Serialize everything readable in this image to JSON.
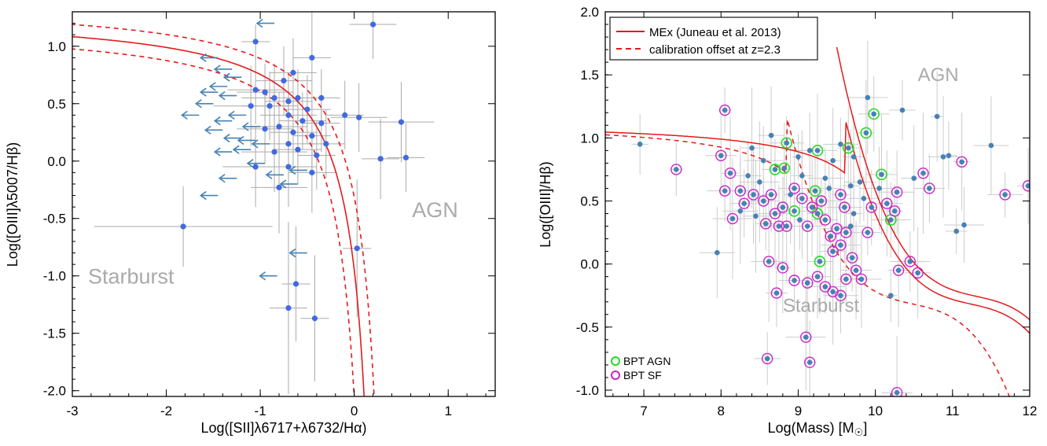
{
  "chart_data": [
    {
      "type": "scatter",
      "xlabel": "Log([SII]λ6717+λ6732/Hα)",
      "ylabel": "Log([OIII]λ5007/Hβ)",
      "xlim": [
        -3,
        1.5
      ],
      "ylim": [
        -2.05,
        1.3
      ],
      "xticks": [
        -3,
        -2,
        -1,
        0,
        1
      ],
      "yticks": [
        -2.0,
        -1.5,
        -1.0,
        -0.5,
        0.0,
        0.5,
        1.0
      ],
      "grid": false,
      "annotations": [
        {
          "text": "AGN",
          "x": 0.95,
          "y": -0.42
        },
        {
          "text": "Starburst",
          "x": -2.4,
          "y": -1.0
        }
      ],
      "colors": {
        "points": "#4169e1",
        "arrows": "#4682b4",
        "errorbars": "#aaaaaa",
        "curve": "#e41a1c"
      },
      "detections": [
        {
          "x": -1.05,
          "y": 1.04,
          "xerr": 0.15,
          "yerr": 0.15
        },
        {
          "x": 0.2,
          "y": 1.19,
          "xerr": 0.25,
          "yerr": 0.3
        },
        {
          "x": -0.45,
          "y": 0.9,
          "xerr": 0.2,
          "yerr": 0.45
        },
        {
          "x": -0.65,
          "y": 0.77,
          "xerr": 0.25,
          "yerr": 0.3
        },
        {
          "x": -0.75,
          "y": 0.7,
          "xerr": 0.3,
          "yerr": 0.3
        },
        {
          "x": -1.05,
          "y": 0.62,
          "xerr": 0.3,
          "yerr": 0.3
        },
        {
          "x": -0.95,
          "y": 0.6,
          "xerr": 0.3,
          "yerr": 0.25
        },
        {
          "x": -0.85,
          "y": 0.55,
          "xerr": 0.35,
          "yerr": 0.3
        },
        {
          "x": -0.7,
          "y": 0.52,
          "xerr": 0.25,
          "yerr": 0.25
        },
        {
          "x": -0.6,
          "y": 0.55,
          "xerr": 0.2,
          "yerr": 0.25
        },
        {
          "x": -0.9,
          "y": 0.48,
          "xerr": 0.3,
          "yerr": 0.3
        },
        {
          "x": -1.1,
          "y": 0.48,
          "xerr": 0.4,
          "yerr": 0.35
        },
        {
          "x": -0.5,
          "y": 0.45,
          "xerr": 0.25,
          "yerr": 0.3
        },
        {
          "x": -0.35,
          "y": 0.55,
          "xerr": 0.2,
          "yerr": 0.25
        },
        {
          "x": -0.7,
          "y": 0.4,
          "xerr": 0.3,
          "yerr": 0.3
        },
        {
          "x": -0.55,
          "y": 0.35,
          "xerr": 0.25,
          "yerr": 0.25
        },
        {
          "x": -0.1,
          "y": 0.4,
          "xerr": 0.2,
          "yerr": 0.3
        },
        {
          "x": 0.05,
          "y": 0.38,
          "xerr": 0.3,
          "yerr": 0.3
        },
        {
          "x": -0.35,
          "y": 0.33,
          "xerr": 0.2,
          "yerr": 0.25
        },
        {
          "x": -0.8,
          "y": 0.3,
          "xerr": 0.3,
          "yerr": 0.3
        },
        {
          "x": -0.95,
          "y": 0.28,
          "xerr": 0.3,
          "yerr": 0.3
        },
        {
          "x": -0.65,
          "y": 0.25,
          "xerr": 0.25,
          "yerr": 0.3
        },
        {
          "x": -0.45,
          "y": 0.22,
          "xerr": 0.2,
          "yerr": 0.3
        },
        {
          "x": -0.7,
          "y": 0.15,
          "xerr": 0.3,
          "yerr": 0.35
        },
        {
          "x": -0.85,
          "y": 0.08,
          "xerr": 0.35,
          "yerr": 0.35
        },
        {
          "x": -0.6,
          "y": 0.1,
          "xerr": 0.25,
          "yerr": 0.3
        },
        {
          "x": -0.4,
          "y": 0.05,
          "xerr": 0.2,
          "yerr": 0.3
        },
        {
          "x": -1.05,
          "y": -0.05,
          "xerr": 0.35,
          "yerr": 0.35
        },
        {
          "x": -0.7,
          "y": -0.05,
          "xerr": 0.3,
          "yerr": 0.35
        },
        {
          "x": -0.45,
          "y": -0.1,
          "xerr": 0.25,
          "yerr": 0.35
        },
        {
          "x": -0.8,
          "y": -0.23,
          "xerr": 0.3,
          "yerr": 0.4
        },
        {
          "x": -0.3,
          "y": 0.15,
          "xerr": 0.2,
          "yerr": 0.3
        },
        {
          "x": 0.5,
          "y": 0.34,
          "xerr": 0.35,
          "yerr": 0.35
        },
        {
          "x": 0.28,
          "y": 0.02,
          "xerr": 0.2,
          "yerr": 0.35
        },
        {
          "x": 0.55,
          "y": 0.03,
          "xerr": 0.2,
          "yerr": 0.3
        },
        {
          "x": -1.82,
          "y": -0.57,
          "xerr": 0.95,
          "yerr": 0.35
        },
        {
          "x": 0.03,
          "y": -0.76,
          "xerr": 0.15,
          "yerr": 0.6
        },
        {
          "x": -0.62,
          "y": -1.07,
          "xerr": 0.15,
          "yerr": 0.5
        },
        {
          "x": -0.7,
          "y": -1.28,
          "xerr": 0.2,
          "yerr": 0.75
        },
        {
          "x": -0.42,
          "y": -1.37,
          "xerr": 0.15,
          "yerr": 0.55
        }
      ],
      "upper_limits": [
        {
          "x": -0.85,
          "y": 1.2
        },
        {
          "x": -1.45,
          "y": 0.9
        },
        {
          "x": -1.3,
          "y": 0.8
        },
        {
          "x": -1.2,
          "y": 0.73
        },
        {
          "x": -1.35,
          "y": 0.65
        },
        {
          "x": -1.45,
          "y": 0.6
        },
        {
          "x": -1.25,
          "y": 0.57
        },
        {
          "x": -1.5,
          "y": 0.5
        },
        {
          "x": -1.65,
          "y": 0.4
        },
        {
          "x": -1.15,
          "y": 0.4
        },
        {
          "x": -1.3,
          "y": 0.35
        },
        {
          "x": -1.0,
          "y": 0.3
        },
        {
          "x": -1.4,
          "y": 0.27
        },
        {
          "x": -1.2,
          "y": 0.2
        },
        {
          "x": -1.05,
          "y": 0.18
        },
        {
          "x": -0.9,
          "y": 0.15
        },
        {
          "x": -1.1,
          "y": 0.1
        },
        {
          "x": -1.3,
          "y": 0.08
        },
        {
          "x": -0.95,
          "y": -0.02
        },
        {
          "x": -0.5,
          "y": -0.08
        },
        {
          "x": -0.75,
          "y": -0.12
        },
        {
          "x": -1.25,
          "y": -0.15
        },
        {
          "x": -0.6,
          "y": -0.2
        },
        {
          "x": -1.45,
          "y": -0.3
        },
        {
          "x": -0.5,
          "y": -0.8
        },
        {
          "x": -0.82,
          "y": -1.0
        }
      ],
      "curves": [
        {
          "style": "solid",
          "form": "0.72/(x-0.32)+1.30"
        },
        {
          "style": "dashed",
          "form": "0.72/(x-0.42)+1.40"
        },
        {
          "style": "dashed",
          "form": "0.72/(x-0.22)+1.20"
        }
      ]
    },
    {
      "type": "scatter",
      "xlabel": "Log(Mass) [M",
      "xlabel_suffix": "]",
      "ylabel": "Log([OIII]/Hβ)",
      "xlim": [
        6.5,
        12
      ],
      "ylim": [
        -1.05,
        2.0
      ],
      "xticks": [
        7,
        8,
        9,
        10,
        11,
        12
      ],
      "yticks": [
        -1.0,
        -0.5,
        0.0,
        0.5,
        1.0,
        1.5,
        2.0
      ],
      "grid": false,
      "legend_placement": "top-left",
      "legend": [
        {
          "label": "MEx (Juneau et al. 2013)",
          "style": "solid"
        },
        {
          "label": "calibration offset at z=2.3",
          "style": "dashed"
        }
      ],
      "marker_legend": [
        {
          "label": "BPT AGN",
          "color": "#22dd22"
        },
        {
          "label": "BPT SF",
          "color": "#cc22cc"
        }
      ],
      "annotations": [
        {
          "text": "AGN",
          "x": 10.55,
          "y": 1.45
        },
        {
          "text": "Starburst",
          "x": 8.8,
          "y": -0.38
        }
      ],
      "colors": {
        "points": "#4682b4",
        "bpt_agn": "#22dd22",
        "bpt_sf": "#cc22cc",
        "errorbars": "#cccccc",
        "curve": "#e41a1c"
      },
      "points": [
        {
          "x": 8.05,
          "y": 1.22,
          "flag": "sf"
        },
        {
          "x": 9.98,
          "y": 1.19,
          "flag": "agn"
        },
        {
          "x": 9.88,
          "y": 1.04,
          "flag": "agn"
        },
        {
          "x": 8.85,
          "y": 0.96,
          "flag": "agn"
        },
        {
          "x": 9.65,
          "y": 0.92,
          "flag": "agn"
        },
        {
          "x": 9.25,
          "y": 0.9,
          "flag": "agn"
        },
        {
          "x": 8.7,
          "y": 0.75,
          "flag": "agn"
        },
        {
          "x": 8.82,
          "y": 0.76,
          "flag": "agn"
        },
        {
          "x": 10.08,
          "y": 0.71,
          "flag": "agn"
        },
        {
          "x": 9.22,
          "y": 0.58,
          "flag": "agn"
        },
        {
          "x": 8.95,
          "y": 0.42,
          "flag": "agn"
        },
        {
          "x": 9.25,
          "y": 0.4,
          "flag": "agn"
        },
        {
          "x": 10.2,
          "y": 0.35,
          "flag": "agn"
        },
        {
          "x": 9.28,
          "y": 0.02,
          "flag": "agn"
        },
        {
          "x": 7.42,
          "y": 0.75,
          "flag": "sf"
        },
        {
          "x": 8.0,
          "y": 0.86,
          "flag": "sf"
        },
        {
          "x": 8.12,
          "y": 0.72,
          "flag": "sf"
        },
        {
          "x": 8.05,
          "y": 0.58,
          "flag": "sf"
        },
        {
          "x": 8.25,
          "y": 0.58,
          "flag": "sf"
        },
        {
          "x": 8.15,
          "y": 0.36,
          "flag": "sf"
        },
        {
          "x": 8.3,
          "y": 0.48,
          "flag": "sf"
        },
        {
          "x": 8.42,
          "y": 0.55,
          "flag": "sf"
        },
        {
          "x": 8.55,
          "y": 0.5,
          "flag": "sf"
        },
        {
          "x": 8.65,
          "y": 0.55,
          "flag": "sf"
        },
        {
          "x": 8.7,
          "y": 0.4,
          "flag": "sf"
        },
        {
          "x": 8.58,
          "y": 0.32,
          "flag": "sf"
        },
        {
          "x": 8.75,
          "y": 0.3,
          "flag": "sf"
        },
        {
          "x": 8.85,
          "y": 0.3,
          "flag": "sf"
        },
        {
          "x": 8.8,
          "y": 0.45,
          "flag": "sf"
        },
        {
          "x": 8.95,
          "y": 0.6,
          "flag": "sf"
        },
        {
          "x": 9.05,
          "y": 0.52,
          "flag": "sf"
        },
        {
          "x": 9.12,
          "y": 0.3,
          "flag": "sf"
        },
        {
          "x": 9.18,
          "y": 0.45,
          "flag": "sf"
        },
        {
          "x": 9.3,
          "y": 0.5,
          "flag": "sf"
        },
        {
          "x": 9.35,
          "y": 0.35,
          "flag": "sf"
        },
        {
          "x": 9.42,
          "y": 0.22,
          "flag": "sf"
        },
        {
          "x": 9.5,
          "y": 0.28,
          "flag": "sf"
        },
        {
          "x": 9.55,
          "y": 0.55,
          "flag": "sf"
        },
        {
          "x": 9.6,
          "y": 0.45,
          "flag": "sf"
        },
        {
          "x": 9.62,
          "y": 0.25,
          "flag": "sf"
        },
        {
          "x": 9.55,
          "y": 0.15,
          "flag": "sf"
        },
        {
          "x": 9.45,
          "y": 0.1,
          "flag": "sf"
        },
        {
          "x": 9.7,
          "y": 0.05,
          "flag": "sf"
        },
        {
          "x": 9.75,
          "y": -0.05,
          "flag": "sf"
        },
        {
          "x": 9.62,
          "y": -0.12,
          "flag": "sf"
        },
        {
          "x": 9.55,
          "y": -0.25,
          "flag": "sf"
        },
        {
          "x": 9.45,
          "y": -0.22,
          "flag": "sf"
        },
        {
          "x": 9.35,
          "y": -0.18,
          "flag": "sf"
        },
        {
          "x": 9.25,
          "y": -0.1,
          "flag": "sf"
        },
        {
          "x": 9.12,
          "y": -0.15,
          "flag": "sf"
        },
        {
          "x": 8.95,
          "y": -0.13,
          "flag": "sf"
        },
        {
          "x": 8.8,
          "y": -0.03,
          "flag": "sf"
        },
        {
          "x": 8.62,
          "y": 0.02,
          "flag": "sf"
        },
        {
          "x": 8.72,
          "y": -0.23,
          "flag": "sf"
        },
        {
          "x": 9.82,
          "y": -0.12,
          "flag": "sf"
        },
        {
          "x": 9.9,
          "y": 0.25,
          "flag": "sf"
        },
        {
          "x": 9.95,
          "y": 0.45,
          "flag": "sf"
        },
        {
          "x": 10.15,
          "y": 0.48,
          "flag": "sf"
        },
        {
          "x": 10.25,
          "y": 0.42,
          "flag": "sf"
        },
        {
          "x": 10.28,
          "y": 0.57,
          "flag": "sf"
        },
        {
          "x": 10.3,
          "y": -0.05,
          "flag": "sf"
        },
        {
          "x": 10.45,
          "y": 0.02,
          "flag": "sf"
        },
        {
          "x": 10.55,
          "y": -0.07,
          "flag": "sf"
        },
        {
          "x": 10.62,
          "y": 0.72,
          "flag": "sf"
        },
        {
          "x": 10.7,
          "y": 0.6,
          "flag": "sf"
        },
        {
          "x": 11.12,
          "y": 0.81,
          "flag": "sf"
        },
        {
          "x": 11.68,
          "y": 0.55,
          "flag": "sf"
        },
        {
          "x": 11.98,
          "y": 0.62,
          "flag": "sf"
        },
        {
          "x": 9.1,
          "y": -0.58,
          "flag": "sf"
        },
        {
          "x": 8.6,
          "y": -0.75,
          "flag": "sf"
        },
        {
          "x": 9.15,
          "y": -0.78,
          "flag": "sf"
        },
        {
          "x": 10.28,
          "y": -1.02,
          "flag": "sf"
        },
        {
          "x": 6.95,
          "y": 0.95,
          "flag": "none"
        },
        {
          "x": 7.95,
          "y": 0.09,
          "flag": "none"
        },
        {
          "x": 8.4,
          "y": 0.92,
          "flag": "none"
        },
        {
          "x": 8.55,
          "y": 0.82,
          "flag": "none"
        },
        {
          "x": 8.65,
          "y": 1.02,
          "flag": "none"
        },
        {
          "x": 9.0,
          "y": 0.85,
          "flag": "none"
        },
        {
          "x": 9.15,
          "y": 0.9,
          "flag": "none"
        },
        {
          "x": 9.45,
          "y": 0.82,
          "flag": "none"
        },
        {
          "x": 9.55,
          "y": 0.95,
          "flag": "none"
        },
        {
          "x": 9.72,
          "y": 0.85,
          "flag": "none"
        },
        {
          "x": 9.9,
          "y": 1.32,
          "flag": "none"
        },
        {
          "x": 10.35,
          "y": 1.22,
          "flag": "none"
        },
        {
          "x": 10.8,
          "y": 1.17,
          "flag": "none"
        },
        {
          "x": 10.88,
          "y": 0.85,
          "flag": "none"
        },
        {
          "x": 10.95,
          "y": 0.86,
          "flag": "none"
        },
        {
          "x": 11.5,
          "y": 0.94,
          "flag": "none"
        },
        {
          "x": 11.05,
          "y": 0.26,
          "flag": "none"
        },
        {
          "x": 11.15,
          "y": 0.31,
          "flag": "none"
        },
        {
          "x": 10.5,
          "y": 0.68,
          "flag": "none"
        },
        {
          "x": 10.2,
          "y": -0.25,
          "flag": "none"
        },
        {
          "x": 9.8,
          "y": 0.65,
          "flag": "none"
        },
        {
          "x": 9.68,
          "y": 0.62,
          "flag": "none"
        },
        {
          "x": 9.35,
          "y": 0.68,
          "flag": "none"
        },
        {
          "x": 9.05,
          "y": 0.7,
          "flag": "none"
        },
        {
          "x": 8.5,
          "y": 0.65,
          "flag": "none"
        },
        {
          "x": 8.35,
          "y": 0.7,
          "flag": "none"
        },
        {
          "x": 8.9,
          "y": 0.55,
          "flag": "none"
        },
        {
          "x": 9.85,
          "y": 0.52,
          "flag": "none"
        },
        {
          "x": 9.72,
          "y": 0.4,
          "flag": "none"
        },
        {
          "x": 8.25,
          "y": 0.42,
          "flag": "none"
        },
        {
          "x": 9.4,
          "y": 0.6,
          "flag": "none"
        },
        {
          "x": 10.05,
          "y": 0.6,
          "flag": "none"
        },
        {
          "x": 8.45,
          "y": 0.38,
          "flag": "none"
        },
        {
          "x": 9.02,
          "y": 0.35,
          "flag": "none"
        },
        {
          "x": 9.68,
          "y": 0.3,
          "flag": "none"
        }
      ],
      "curves": [
        {
          "style": "solid",
          "description": "MEx demarcation upper branch"
        },
        {
          "style": "solid",
          "description": "MEx demarcation lower branch"
        },
        {
          "style": "dashed",
          "description": "calibration offset at z=2.3"
        }
      ]
    }
  ]
}
